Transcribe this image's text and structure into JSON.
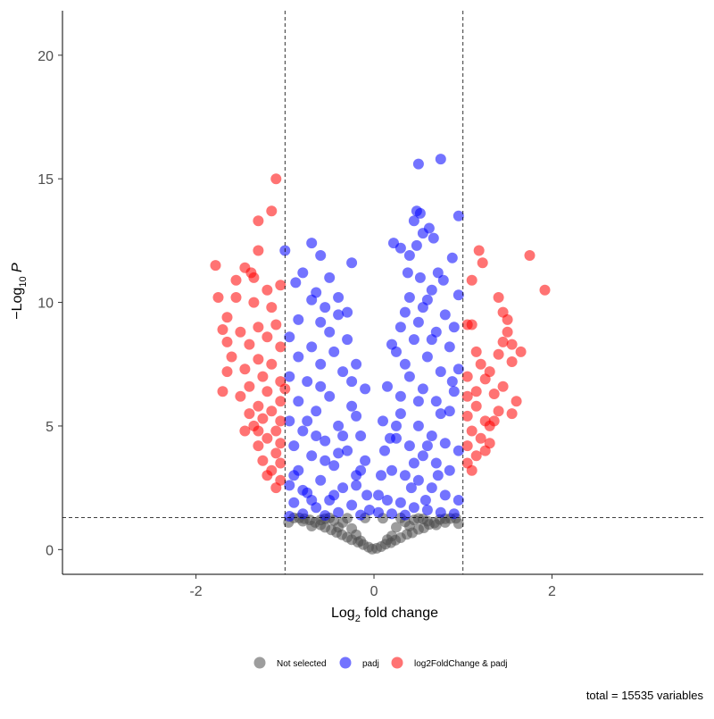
{
  "chart_data": {
    "type": "scatter",
    "title": "",
    "xlabel": {
      "main": "Log",
      "sub": "2",
      "rest": " fold change"
    },
    "ylabel": {
      "prefix": "−Log",
      "sub": "10",
      "rest": " P"
    },
    "xlim": [
      -3.5,
      3.7
    ],
    "ylim": [
      -1.0,
      21.8
    ],
    "x_ticks": [
      -2,
      0,
      2
    ],
    "y_ticks": [
      0,
      5,
      10,
      15,
      20
    ],
    "x_tick_labels": [
      "-2",
      "0",
      "2"
    ],
    "y_tick_labels": [
      "0",
      "5",
      "10",
      "15",
      "20"
    ],
    "cutoff_lines": {
      "log2fc": [
        -1,
        1
      ],
      "neg_log10_p": 1.3
    },
    "grid": false,
    "legend_position": "bottom",
    "legend": [
      {
        "label": "Not selected",
        "color": "#4d4d4d"
      },
      {
        "label": "padj",
        "color": "#0000ff"
      },
      {
        "label": "log2FoldChange & padj",
        "color": "#ff0000"
      }
    ],
    "caption": "total = 15535 variables",
    "series": [
      {
        "name": "Not selected",
        "color": "#4d4d4d",
        "points": [
          [
            -0.02,
            0.02
          ],
          [
            0.03,
            0.05
          ],
          [
            -0.06,
            0.1
          ],
          [
            0.08,
            0.12
          ],
          [
            -0.12,
            0.2
          ],
          [
            0.13,
            0.22
          ],
          [
            -0.18,
            0.3
          ],
          [
            0.19,
            0.28
          ],
          [
            -0.25,
            0.4
          ],
          [
            0.24,
            0.38
          ],
          [
            -0.3,
            0.5
          ],
          [
            0.3,
            0.48
          ],
          [
            -0.36,
            0.6
          ],
          [
            0.37,
            0.62
          ],
          [
            -0.42,
            0.7
          ],
          [
            0.43,
            0.68
          ],
          [
            -0.48,
            0.8
          ],
          [
            0.5,
            0.82
          ],
          [
            -0.55,
            0.9
          ],
          [
            0.56,
            0.88
          ],
          [
            -0.6,
            1.0
          ],
          [
            0.62,
            1.02
          ],
          [
            -0.66,
            1.1
          ],
          [
            0.68,
            1.08
          ],
          [
            -0.72,
            1.2
          ],
          [
            0.74,
            1.22
          ],
          [
            -0.78,
            1.25
          ],
          [
            0.8,
            1.25
          ],
          [
            -0.84,
            1.28
          ],
          [
            0.86,
            1.26
          ],
          [
            -0.9,
            1.28
          ],
          [
            0.92,
            1.27
          ],
          [
            -0.96,
            1.1
          ],
          [
            0.95,
            1.05
          ],
          [
            -0.5,
            1.28
          ],
          [
            -0.3,
            1.27
          ],
          [
            -0.1,
            1.28
          ],
          [
            0.1,
            1.27
          ],
          [
            0.3,
            1.28
          ],
          [
            0.5,
            1.26
          ],
          [
            -0.4,
            0.9
          ],
          [
            0.4,
            0.95
          ],
          [
            -0.2,
            0.6
          ],
          [
            0.2,
            0.55
          ],
          [
            -0.6,
            1.2
          ],
          [
            0.6,
            1.15
          ],
          [
            -0.7,
            0.95
          ],
          [
            0.7,
            1.0
          ],
          [
            -0.35,
            1.1
          ],
          [
            0.35,
            1.12
          ],
          [
            -0.15,
            0.35
          ],
          [
            0.15,
            0.4
          ],
          [
            -0.45,
            1.18
          ],
          [
            0.45,
            1.2
          ],
          [
            -0.8,
            1.15
          ],
          [
            0.8,
            1.1
          ],
          [
            -0.25,
            0.85
          ],
          [
            0.25,
            0.9
          ],
          [
            -0.55,
            1.25
          ],
          [
            0.55,
            1.24
          ]
        ]
      },
      {
        "name": "padj",
        "color": "#0000ff",
        "points": [
          [
            0.75,
            15.8
          ],
          [
            0.5,
            15.6
          ],
          [
            0.48,
            13.7
          ],
          [
            0.52,
            13.6
          ],
          [
            0.95,
            13.5
          ],
          [
            0.45,
            13.3
          ],
          [
            0.62,
            13.0
          ],
          [
            0.55,
            12.8
          ],
          [
            0.48,
            12.3
          ],
          [
            0.67,
            12.6
          ],
          [
            0.3,
            12.2
          ],
          [
            0.22,
            12.4
          ],
          [
            0.88,
            11.8
          ],
          [
            0.4,
            11.9
          ],
          [
            0.38,
            11.2
          ],
          [
            0.72,
            11.2
          ],
          [
            0.78,
            10.9
          ],
          [
            0.52,
            11.0
          ],
          [
            0.65,
            10.5
          ],
          [
            0.95,
            10.3
          ],
          [
            0.4,
            10.2
          ],
          [
            0.35,
            9.6
          ],
          [
            0.55,
            9.8
          ],
          [
            0.8,
            9.5
          ],
          [
            0.9,
            9.0
          ],
          [
            0.3,
            9.0
          ],
          [
            0.45,
            8.5
          ],
          [
            0.7,
            8.8
          ],
          [
            0.85,
            8.2
          ],
          [
            0.95,
            7.3
          ],
          [
            0.25,
            8.0
          ],
          [
            0.6,
            7.8
          ],
          [
            0.75,
            7.2
          ],
          [
            0.9,
            6.4
          ],
          [
            0.15,
            6.6
          ],
          [
            0.4,
            7.0
          ],
          [
            0.55,
            6.5
          ],
          [
            0.7,
            6.0
          ],
          [
            0.85,
            5.6
          ],
          [
            0.1,
            5.2
          ],
          [
            0.3,
            5.5
          ],
          [
            0.5,
            5.0
          ],
          [
            0.65,
            4.6
          ],
          [
            0.8,
            4.3
          ],
          [
            0.95,
            4.0
          ],
          [
            0.12,
            4.0
          ],
          [
            0.25,
            4.5
          ],
          [
            0.4,
            4.2
          ],
          [
            0.55,
            3.8
          ],
          [
            0.7,
            3.5
          ],
          [
            0.85,
            3.2
          ],
          [
            0.08,
            3.0
          ],
          [
            0.2,
            3.2
          ],
          [
            0.35,
            3.0
          ],
          [
            0.5,
            2.8
          ],
          [
            0.65,
            2.5
          ],
          [
            0.8,
            2.2
          ],
          [
            0.95,
            2.0
          ],
          [
            0.05,
            2.2
          ],
          [
            0.15,
            2.0
          ],
          [
            0.3,
            1.9
          ],
          [
            0.45,
            1.7
          ],
          [
            0.6,
            1.6
          ],
          [
            0.75,
            1.5
          ],
          [
            0.9,
            1.45
          ],
          [
            0.05,
            1.5
          ],
          [
            0.2,
            1.45
          ],
          [
            0.35,
            1.4
          ],
          [
            0.2,
            8.3
          ],
          [
            0.5,
            9.2
          ],
          [
            0.6,
            10.1
          ],
          [
            0.3,
            6.2
          ],
          [
            0.45,
            3.5
          ],
          [
            0.6,
            4.2
          ],
          [
            0.75,
            5.5
          ],
          [
            0.88,
            6.8
          ],
          [
            0.5,
            6.0
          ],
          [
            0.35,
            7.5
          ],
          [
            0.65,
            8.5
          ],
          [
            0.25,
            5.0
          ],
          [
            0.18,
            4.5
          ],
          [
            0.42,
            2.5
          ],
          [
            0.58,
            2.0
          ],
          [
            0.72,
            3.0
          ],
          [
            -0.7,
            12.4
          ],
          [
            -1.0,
            12.1
          ],
          [
            -0.6,
            11.9
          ],
          [
            -0.25,
            11.6
          ],
          [
            -0.8,
            11.2
          ],
          [
            -0.5,
            11.0
          ],
          [
            -0.88,
            10.8
          ],
          [
            -0.65,
            10.4
          ],
          [
            -0.7,
            10.1
          ],
          [
            -0.4,
            10.2
          ],
          [
            -0.55,
            9.8
          ],
          [
            -0.85,
            9.3
          ],
          [
            -0.6,
            9.2
          ],
          [
            -0.4,
            9.5
          ],
          [
            -0.95,
            8.6
          ],
          [
            -0.3,
            8.5
          ],
          [
            -0.7,
            8.2
          ],
          [
            -0.5,
            8.8
          ],
          [
            -0.85,
            7.8
          ],
          [
            -0.2,
            7.5
          ],
          [
            -0.6,
            7.5
          ],
          [
            -0.95,
            7.0
          ],
          [
            -0.35,
            7.2
          ],
          [
            -0.75,
            6.8
          ],
          [
            -0.1,
            6.5
          ],
          [
            -0.5,
            6.2
          ],
          [
            -0.85,
            6.0
          ],
          [
            -0.25,
            5.8
          ],
          [
            -0.65,
            5.6
          ],
          [
            -0.95,
            5.2
          ],
          [
            -0.4,
            5.0
          ],
          [
            -0.8,
            4.8
          ],
          [
            -0.15,
            4.6
          ],
          [
            -0.55,
            4.4
          ],
          [
            -0.9,
            4.2
          ],
          [
            -0.3,
            4.0
          ],
          [
            -0.7,
            3.8
          ],
          [
            -0.1,
            3.6
          ],
          [
            -0.45,
            3.4
          ],
          [
            -0.85,
            3.2
          ],
          [
            -0.2,
            3.0
          ],
          [
            -0.6,
            2.8
          ],
          [
            -0.95,
            2.6
          ],
          [
            -0.35,
            2.5
          ],
          [
            -0.75,
            2.3
          ],
          [
            -0.08,
            2.2
          ],
          [
            -0.5,
            2.0
          ],
          [
            -0.9,
            1.9
          ],
          [
            -0.25,
            1.8
          ],
          [
            -0.65,
            1.7
          ],
          [
            -0.05,
            1.6
          ],
          [
            -0.4,
            1.5
          ],
          [
            -0.8,
            1.45
          ],
          [
            -0.15,
            1.4
          ],
          [
            -0.55,
            1.38
          ],
          [
            -0.95,
            1.35
          ],
          [
            -0.3,
            9.6
          ],
          [
            -0.45,
            8.0
          ],
          [
            -0.25,
            6.8
          ],
          [
            -0.6,
            6.6
          ],
          [
            -0.35,
            4.6
          ],
          [
            -0.75,
            5.2
          ],
          [
            -0.15,
            3.2
          ],
          [
            -0.55,
            3.6
          ],
          [
            -0.8,
            2.4
          ],
          [
            -0.2,
            2.6
          ],
          [
            -0.45,
            2.2
          ],
          [
            -0.7,
            2.0
          ],
          [
            -0.9,
            3.0
          ],
          [
            -0.4,
            3.9
          ],
          [
            -0.65,
            4.6
          ],
          [
            -0.2,
            5.4
          ]
        ]
      },
      {
        "name": "log2FoldChange & padj",
        "color": "#ff0000",
        "points": [
          [
            -1.1,
            15.0
          ],
          [
            -1.15,
            13.7
          ],
          [
            -1.3,
            13.3
          ],
          [
            -1.3,
            12.1
          ],
          [
            -1.78,
            11.5
          ],
          [
            -1.45,
            11.4
          ],
          [
            -1.38,
            11.2
          ],
          [
            -1.35,
            11.0
          ],
          [
            -1.55,
            10.9
          ],
          [
            -1.2,
            10.5
          ],
          [
            -1.05,
            10.7
          ],
          [
            -1.75,
            10.2
          ],
          [
            -1.55,
            10.2
          ],
          [
            -1.35,
            10.0
          ],
          [
            -1.15,
            9.8
          ],
          [
            -1.65,
            9.4
          ],
          [
            -1.3,
            9.0
          ],
          [
            -1.1,
            9.1
          ],
          [
            -1.7,
            8.9
          ],
          [
            -1.5,
            8.8
          ],
          [
            -1.2,
            8.6
          ],
          [
            -1.65,
            8.4
          ],
          [
            -1.4,
            8.3
          ],
          [
            -1.05,
            8.2
          ],
          [
            -1.6,
            7.8
          ],
          [
            -1.3,
            7.7
          ],
          [
            -1.15,
            7.5
          ],
          [
            -1.45,
            7.3
          ],
          [
            -1.65,
            7.2
          ],
          [
            -1.25,
            7.0
          ],
          [
            -1.05,
            6.8
          ],
          [
            -1.4,
            6.6
          ],
          [
            -1.7,
            6.4
          ],
          [
            -1.2,
            6.4
          ],
          [
            -1.05,
            6.0
          ],
          [
            -1.3,
            5.8
          ],
          [
            -1.5,
            6.2
          ],
          [
            -1.15,
            5.6
          ],
          [
            -1.25,
            5.3
          ],
          [
            -1.05,
            5.2
          ],
          [
            -1.35,
            5.0
          ],
          [
            -1.1,
            4.8
          ],
          [
            -1.45,
            4.8
          ],
          [
            -1.2,
            4.5
          ],
          [
            -1.05,
            4.3
          ],
          [
            -1.3,
            4.2
          ],
          [
            -1.1,
            3.9
          ],
          [
            -1.25,
            3.6
          ],
          [
            -1.05,
            3.5
          ],
          [
            -1.15,
            3.2
          ],
          [
            -1.05,
            2.8
          ],
          [
            -1.1,
            2.5
          ],
          [
            -1.3,
            4.8
          ],
          [
            -1.2,
            3.0
          ],
          [
            -1.4,
            5.5
          ],
          [
            -1.0,
            6.5
          ],
          [
            1.18,
            12.1
          ],
          [
            1.75,
            11.9
          ],
          [
            1.22,
            11.6
          ],
          [
            1.1,
            10.9
          ],
          [
            1.92,
            10.5
          ],
          [
            1.4,
            10.2
          ],
          [
            1.45,
            9.6
          ],
          [
            1.05,
            9.1
          ],
          [
            1.1,
            9.1
          ],
          [
            1.5,
            9.3
          ],
          [
            1.5,
            8.8
          ],
          [
            1.45,
            8.4
          ],
          [
            1.55,
            8.3
          ],
          [
            1.15,
            8.0
          ],
          [
            1.65,
            8.0
          ],
          [
            1.4,
            7.9
          ],
          [
            1.55,
            7.6
          ],
          [
            1.2,
            7.5
          ],
          [
            1.3,
            7.2
          ],
          [
            1.05,
            7.0
          ],
          [
            1.25,
            6.9
          ],
          [
            1.45,
            6.6
          ],
          [
            1.15,
            6.4
          ],
          [
            1.05,
            6.2
          ],
          [
            1.35,
            6.3
          ],
          [
            1.6,
            6.0
          ],
          [
            1.15,
            5.8
          ],
          [
            1.4,
            5.6
          ],
          [
            1.55,
            5.5
          ],
          [
            1.05,
            5.4
          ],
          [
            1.25,
            5.2
          ],
          [
            1.3,
            5.0
          ],
          [
            1.1,
            4.8
          ],
          [
            1.2,
            4.5
          ],
          [
            1.05,
            4.2
          ],
          [
            1.3,
            4.3
          ],
          [
            1.15,
            3.8
          ],
          [
            1.05,
            3.5
          ],
          [
            1.25,
            4.0
          ],
          [
            1.35,
            5.2
          ],
          [
            1.1,
            3.2
          ]
        ]
      }
    ]
  }
}
